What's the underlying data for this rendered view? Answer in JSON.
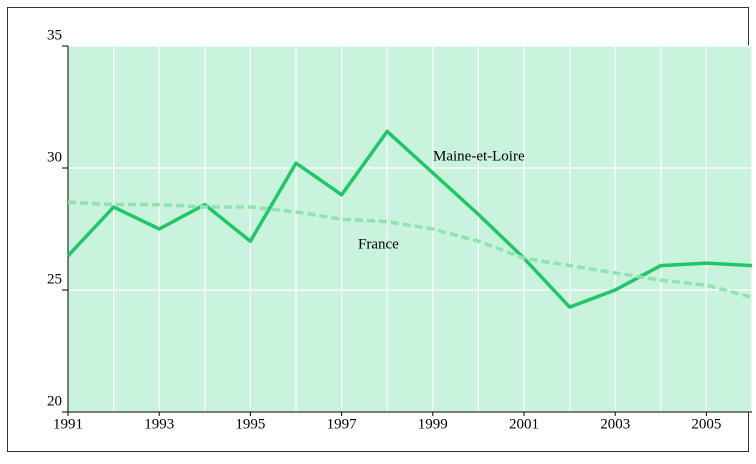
{
  "chart_data": {
    "type": "line",
    "x": [
      1991,
      1992,
      1993,
      1994,
      1995,
      1996,
      1997,
      1998,
      1999,
      2000,
      2001,
      2002,
      2003,
      2004,
      2005,
      2006
    ],
    "series": [
      {
        "name": "Maine-et-Loire",
        "color": "#1fc769",
        "dashed": false,
        "values": [
          26.4,
          28.4,
          27.5,
          28.5,
          27.0,
          30.2,
          28.9,
          31.5,
          29.8,
          28.1,
          26.3,
          24.3,
          25.0,
          26.0,
          26.1,
          26.0
        ]
      },
      {
        "name": "France",
        "color": "#8fe3b3",
        "dashed": true,
        "values": [
          28.6,
          28.5,
          28.5,
          28.4,
          28.4,
          28.2,
          27.9,
          27.8,
          27.5,
          27.0,
          26.3,
          26.0,
          25.7,
          25.4,
          25.2,
          24.7
        ]
      }
    ],
    "xlim": [
      1991,
      2006
    ],
    "xticks": [
      1991,
      1993,
      1995,
      1997,
      1999,
      2001,
      2003,
      2005
    ],
    "ylim": [
      20,
      35
    ],
    "yticks": [
      20,
      25,
      30,
      35
    ],
    "grid": true
  }
}
